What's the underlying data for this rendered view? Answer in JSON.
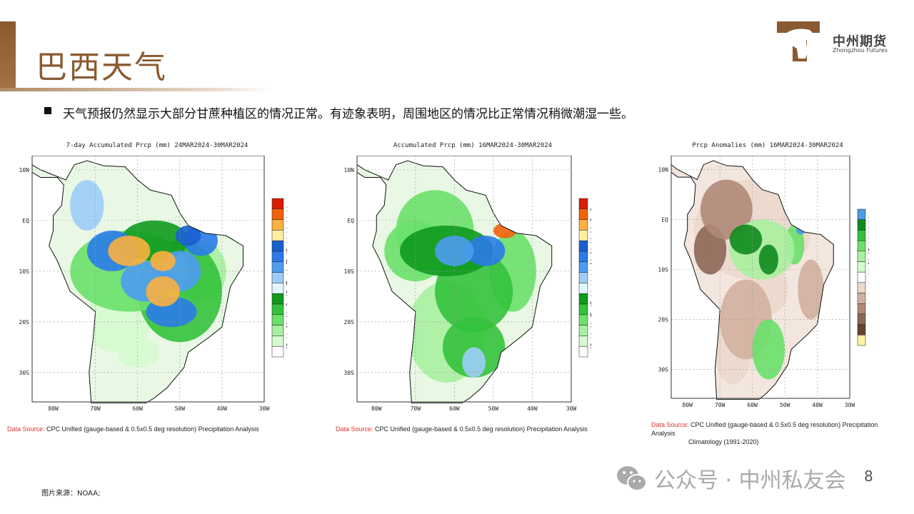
{
  "header": {
    "title": "巴西天气",
    "logo_cn": "中州期货",
    "logo_en": "Zhongzhou Futures"
  },
  "bullet": "天气预报仍然显示大部分甘蔗种植区的情况正常。有迹象表明，周围地区的情况比正常情况稍微潮湿一些。",
  "maps": [
    {
      "title": "7-day Accumulated Prcp (mm) 24MAR2024-30MAR2024",
      "lat_labels": [
        "10N",
        "EQ",
        "10S",
        "20S",
        "30S"
      ],
      "lon_labels": [
        "80W",
        "70W",
        "60W",
        "50W",
        "40W",
        "30W"
      ],
      "colorbar_labels": [
        "135",
        "125",
        "115",
        "105",
        "95",
        "85",
        "75",
        "65",
        "55",
        "45",
        "35",
        "25",
        "15",
        "5"
      ],
      "colorbar_colors": [
        "#d81e05",
        "#f4600a",
        "#fbb040",
        "#fdeea0",
        "#1a5fd0",
        "#2a7be8",
        "#4d9cf0",
        "#9ccdf8",
        "#e0f6fc",
        "#0f9a1e",
        "#33c23b",
        "#6ae06a",
        "#a8f0a0",
        "#d6fad0",
        "#ffffff"
      ],
      "source_label": "Data Source:",
      "source_text": "CPC Unified (gauge-based & 0.5x0.5 deg resolution) Precipitation Analysis"
    },
    {
      "title": "Accumulated Prcp (mm) 16MAR2024-30MAR2024",
      "lat_labels": [
        "10N",
        "EQ",
        "10S",
        "20S",
        "30S"
      ],
      "lon_labels": [
        "80W",
        "70W",
        "60W",
        "50W",
        "40W",
        "30W"
      ],
      "colorbar_labels": [
        "450",
        "400",
        "350",
        "300",
        "250",
        "200",
        "170",
        "150",
        "120",
        "90",
        "60",
        "30",
        "15",
        "5"
      ],
      "colorbar_colors": [
        "#d81e05",
        "#f4600a",
        "#fbb040",
        "#fdeea0",
        "#1a5fd0",
        "#2a7be8",
        "#4d9cf0",
        "#9ccdf8",
        "#e0f6fc",
        "#0f9a1e",
        "#33c23b",
        "#6ae06a",
        "#a8f0a0",
        "#d6fad0",
        "#ffffff"
      ],
      "source_label": "Data Source:",
      "source_text": "CPC Unified (gauge-based & 0.5x0.5 deg resolution) Precipitation Analysis"
    },
    {
      "title": "Prcp Anomalies (mm) 16MAR2024-30MAR2024",
      "lat_labels": [
        "10N",
        "EQ",
        "10S",
        "20S",
        "30S"
      ],
      "lon_labels": [
        "80W",
        "70W",
        "60W",
        "50W",
        "40W",
        "30W"
      ],
      "colorbar_labels": [
        "150",
        "100",
        "75",
        "50",
        "25",
        "15",
        "-15",
        "-25",
        "-50",
        "-75",
        "-100",
        "-150"
      ],
      "colorbar_colors": [
        "#4a9ae8",
        "#0f8a1e",
        "#33c23b",
        "#6ae06a",
        "#a8f0a0",
        "#d6fad0",
        "#ffffff",
        "#ecd8cc",
        "#d2b0a0",
        "#b08878",
        "#8c6656",
        "#6a4030",
        "#fdf0a0"
      ],
      "source_label": "Data Source:",
      "source_text": "CPC Unified (gauge-based & 0.5x0.5 deg resolution) Precipitation Analysis",
      "source_text2": "Climatology (1991-2020)"
    }
  ],
  "footnote": "图片来源：NOAA;",
  "watermark": "公众号 · 中州私友会",
  "page_number": "8"
}
